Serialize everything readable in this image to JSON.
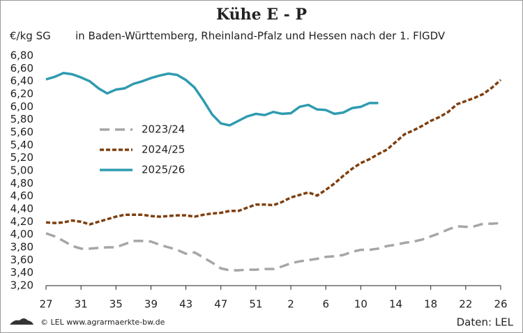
{
  "chart_data": {
    "type": "line",
    "title": "Kühe E - P",
    "y_label": "€/kg SG",
    "subtitle": "in Baden-Württemberg, Rheinland-Pfalz und Hessen nach der 1. FlGDV",
    "source": "Daten: LEL",
    "credit": "© LEL www.agrarmaerkte-bw.de",
    "categories": [
      "27",
      null,
      null,
      null,
      "31",
      null,
      null,
      null,
      "35",
      null,
      null,
      null,
      "39",
      null,
      null,
      null,
      "43",
      null,
      null,
      null,
      "47",
      null,
      null,
      null,
      "51",
      null,
      null,
      null,
      "2",
      null,
      null,
      null,
      "6",
      null,
      null,
      null,
      "10",
      null,
      null,
      null,
      "14",
      null,
      null,
      null,
      "18",
      null,
      null,
      null,
      "22",
      null,
      null,
      null,
      "26"
    ],
    "ylim": [
      3.2,
      6.8
    ],
    "yticks": [
      {
        "value": 3.2,
        "label": "3,20"
      },
      {
        "value": 3.4,
        "label": "3,40"
      },
      {
        "value": 3.6,
        "label": "3,60"
      },
      {
        "value": 3.8,
        "label": "3,80"
      },
      {
        "value": 4.0,
        "label": "4,00"
      },
      {
        "value": 4.2,
        "label": "4,20"
      },
      {
        "value": 4.4,
        "label": "4,40"
      },
      {
        "value": 4.6,
        "label": "4,60"
      },
      {
        "value": 4.8,
        "label": "4,80"
      },
      {
        "value": 5.0,
        "label": "5,00"
      },
      {
        "value": 5.2,
        "label": "5,20"
      },
      {
        "value": 5.4,
        "label": "5,40"
      },
      {
        "value": 5.6,
        "label": "5,60"
      },
      {
        "value": 5.8,
        "label": "5,80"
      },
      {
        "value": 6.0,
        "label": "6,00"
      },
      {
        "value": 6.2,
        "label": "6,20"
      },
      {
        "value": 6.4,
        "label": "6,40"
      },
      {
        "value": 6.6,
        "label": "6,60"
      },
      {
        "value": 6.8,
        "label": "6,80"
      }
    ],
    "series": [
      {
        "name": "2023/24",
        "color": "#a6a6a6",
        "style": "dashed",
        "values": [
          4.02,
          3.97,
          3.9,
          3.82,
          3.78,
          3.78,
          3.79,
          3.8,
          3.8,
          3.85,
          3.9,
          3.9,
          3.89,
          3.84,
          3.8,
          3.76,
          3.7,
          3.72,
          3.64,
          3.56,
          3.47,
          3.44,
          3.44,
          3.45,
          3.45,
          3.46,
          3.46,
          3.5,
          3.55,
          3.58,
          3.6,
          3.62,
          3.65,
          3.66,
          3.68,
          3.73,
          3.76,
          3.76,
          3.78,
          3.82,
          3.84,
          3.87,
          3.89,
          3.92,
          3.97,
          4.02,
          4.08,
          4.13,
          4.12,
          4.13,
          4.17,
          4.17,
          4.18
        ]
      },
      {
        "name": "2024/25",
        "color": "#7f3f0f",
        "style": "dotted",
        "values": [
          4.19,
          4.18,
          4.19,
          4.22,
          4.2,
          4.16,
          4.2,
          4.24,
          4.28,
          4.31,
          4.31,
          4.31,
          4.29,
          4.28,
          4.29,
          4.3,
          4.3,
          4.28,
          4.31,
          4.33,
          4.34,
          4.37,
          4.37,
          4.42,
          4.47,
          4.47,
          4.46,
          4.51,
          4.58,
          4.62,
          4.66,
          4.61,
          4.7,
          4.8,
          4.92,
          5.03,
          5.12,
          5.18,
          5.26,
          5.33,
          5.45,
          5.57,
          5.63,
          5.7,
          5.78,
          5.84,
          5.92,
          6.04,
          6.09,
          6.14,
          6.2,
          6.3,
          6.42
        ]
      },
      {
        "name": "2025/26",
        "color": "#2e9bb0",
        "style": "solid",
        "values": [
          6.43,
          6.47,
          6.53,
          6.51,
          6.46,
          6.4,
          6.29,
          6.21,
          6.27,
          6.29,
          6.36,
          6.4,
          6.45,
          6.49,
          6.52,
          6.5,
          6.42,
          6.3,
          6.1,
          5.88,
          5.74,
          5.71,
          5.78,
          5.85,
          5.89,
          5.87,
          5.92,
          5.89,
          5.9,
          6.0,
          6.03,
          5.96,
          5.95,
          5.89,
          5.91,
          5.98,
          6.0,
          6.06,
          6.06,
          null,
          null,
          null,
          null,
          null,
          null,
          null,
          null,
          null,
          null,
          null,
          null,
          null,
          null
        ]
      }
    ]
  }
}
